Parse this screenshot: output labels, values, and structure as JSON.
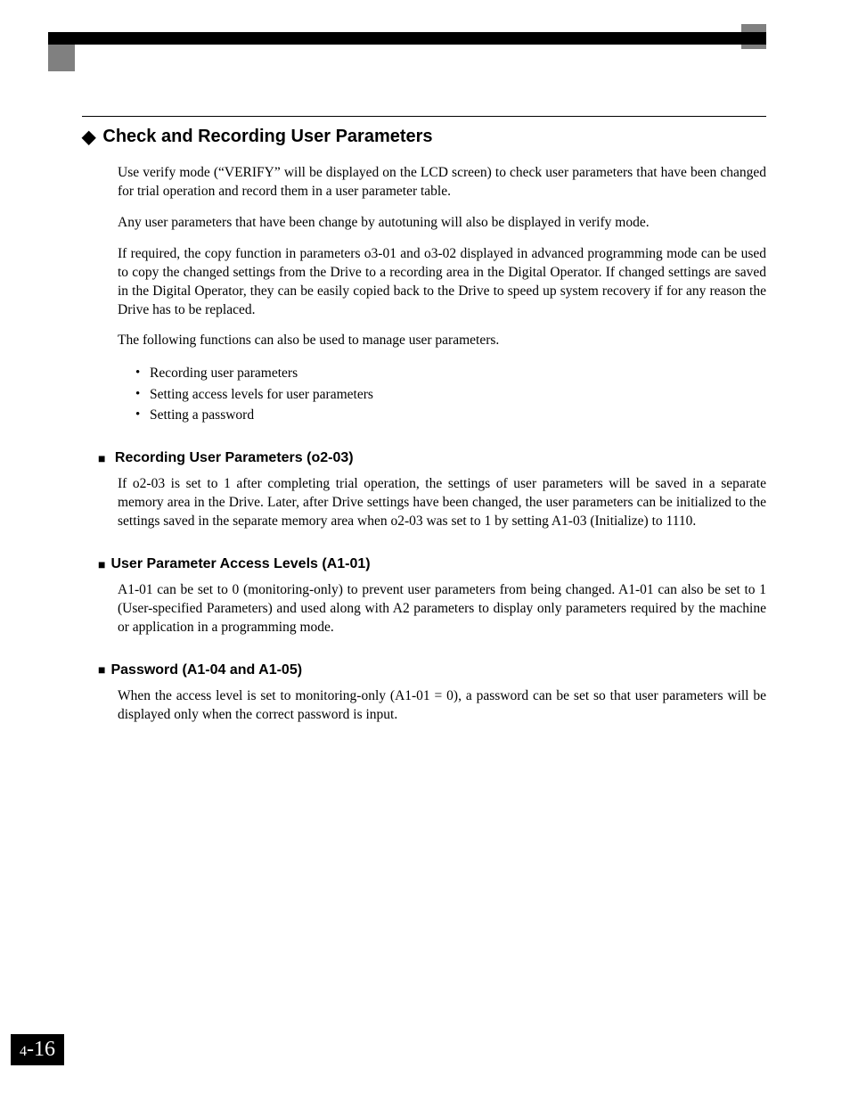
{
  "page": {
    "chapter": "4",
    "separator": "-",
    "page_num": "16"
  },
  "main_heading": "Check and Recording User Parameters",
  "paragraphs": {
    "p1": "Use verify mode (“VERIFY” will be displayed on the LCD screen) to check user parameters that have been changed for trial operation and record them in a user parameter table.",
    "p2": "Any user parameters that have been change by autotuning will also be displayed in verify mode.",
    "p3": "If required, the copy function in parameters o3-01 and o3-02 displayed in advanced programming mode can be used to copy the changed settings from the Drive to a recording area in the Digital Operator. If changed settings are saved in the Digital Operator, they can be easily copied back to the Drive to speed up system recovery if for any reason the Drive has to be replaced.",
    "p4": "The following functions can also be used to manage user parameters."
  },
  "bullet_items": [
    "Recording user parameters",
    "Setting access levels for user parameters",
    "Setting a password"
  ],
  "sections": {
    "s1": {
      "title": "Recording User Parameters (o2-03)",
      "body": "If o2-03 is set to 1 after completing trial operation, the settings of user parameters will be saved in a separate memory area in the Drive. Later, after Drive settings have been changed, the user parameters can be initialized to the settings saved in the separate memory area when o2-03 was set to 1 by setting A1-03 (Initialize) to 1110."
    },
    "s2": {
      "title": "User Parameter Access Levels (A1-01)",
      "body": "A1-01 can be set to 0 (monitoring-only) to prevent user parameters from being changed. A1-01 can also be set to 1 (User-specified Parameters) and used along with A2 parameters to display only parameters required by the machine or application in a programming mode."
    },
    "s3": {
      "title": "Password (A1-04 and A1-05)",
      "body": "When the access level is set to monitoring-only (A1-01 = 0), a password can be set so that user parameters will be displayed only when the correct password is input."
    }
  },
  "styles": {
    "background_color": "#ffffff",
    "text_color": "#000000",
    "bar_color": "#000000",
    "box_color": "#808080",
    "heading_font": "Arial",
    "body_font": "Times New Roman",
    "main_heading_fontsize": 20,
    "sub_heading_fontsize": 16,
    "body_fontsize": 15.5
  }
}
